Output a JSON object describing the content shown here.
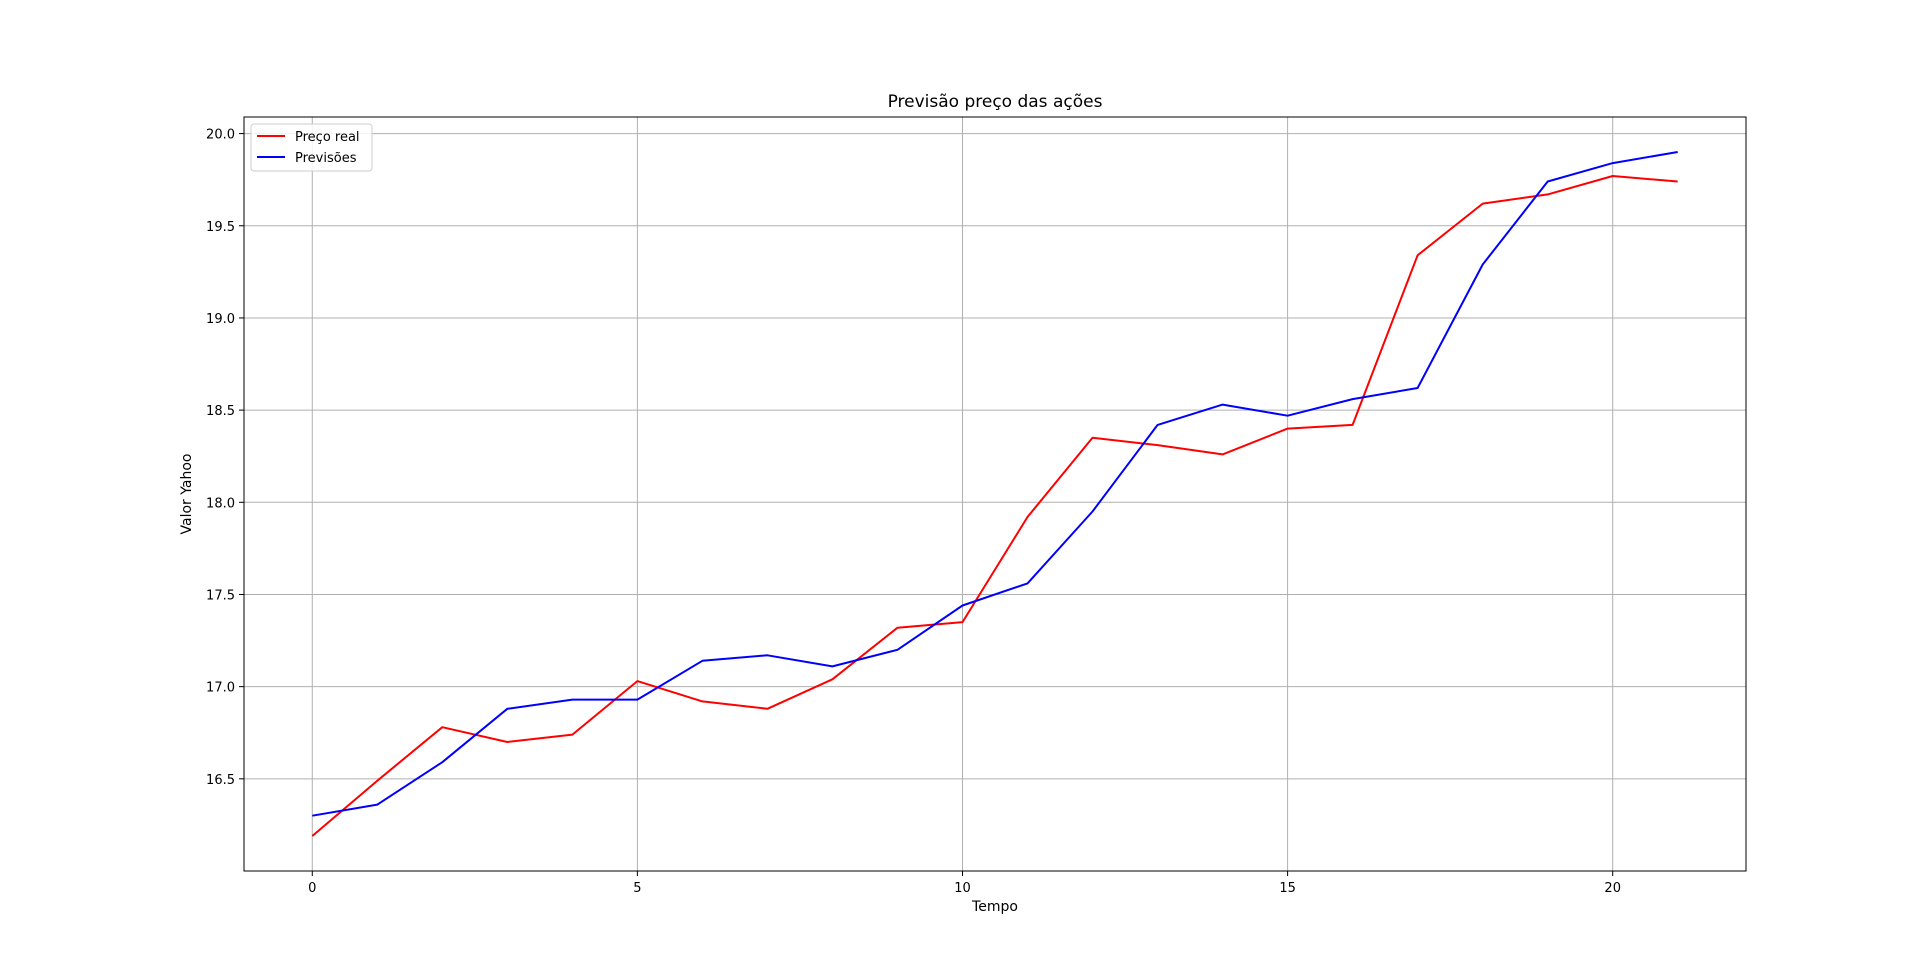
{
  "chart_data": {
    "type": "line",
    "title": "Previsão preço das ações",
    "xlabel": "Tempo",
    "ylabel": "Valor Yahoo",
    "xlim": [
      -1.05,
      22.05
    ],
    "ylim": [
      16.0,
      20.09
    ],
    "xticks": [
      0,
      5,
      10,
      15,
      20
    ],
    "yticks": [
      16.5,
      17.0,
      17.5,
      18.0,
      18.5,
      19.0,
      19.5,
      20.0
    ],
    "grid": true,
    "legend_position": "top-left",
    "x": [
      0,
      1,
      2,
      3,
      4,
      5,
      6,
      7,
      8,
      9,
      10,
      11,
      12,
      13,
      14,
      15,
      16,
      17,
      18,
      19,
      20,
      21
    ],
    "series": [
      {
        "name": "Preço real",
        "color": "#ff0000",
        "values": [
          16.19,
          16.49,
          16.78,
          16.7,
          16.74,
          17.03,
          16.92,
          16.88,
          17.04,
          17.32,
          17.35,
          17.92,
          18.35,
          18.31,
          18.26,
          18.4,
          18.42,
          19.34,
          19.62,
          19.67,
          19.77,
          19.74
        ]
      },
      {
        "name": "Previsões",
        "color": "#0000ff",
        "values": [
          16.3,
          16.36,
          16.59,
          16.88,
          16.93,
          16.93,
          17.14,
          17.17,
          17.11,
          17.2,
          17.44,
          17.56,
          17.95,
          18.42,
          18.53,
          18.47,
          18.56,
          18.62,
          19.29,
          19.74,
          19.84,
          19.9
        ]
      }
    ]
  }
}
